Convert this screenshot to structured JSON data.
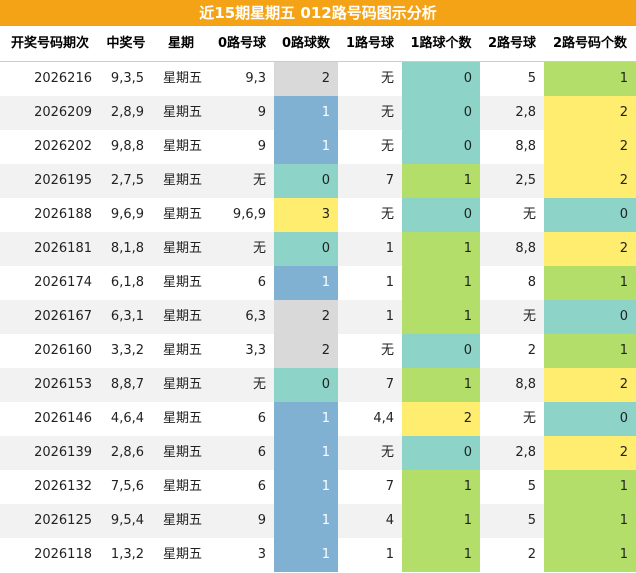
{
  "header": {
    "title": "近15期星期五 012路号码图示分析"
  },
  "table": {
    "columns": [
      "开奖号码期次",
      "中奖号",
      "星期",
      "0路号球",
      "0路球数",
      "1路号球",
      "1路球个数",
      "2路号球",
      "2路号码个数"
    ],
    "rows": [
      [
        "2026216",
        "9,3,5",
        "星期五",
        "9,3",
        2,
        "无",
        0,
        "5",
        1
      ],
      [
        "2026209",
        "2,8,9",
        "星期五",
        "9",
        1,
        "无",
        0,
        "2,8",
        2
      ],
      [
        "2026202",
        "9,8,8",
        "星期五",
        "9",
        1,
        "无",
        0,
        "8,8",
        2
      ],
      [
        "2026195",
        "2,7,5",
        "星期五",
        "无",
        0,
        "7",
        1,
        "2,5",
        2
      ],
      [
        "2026188",
        "9,6,9",
        "星期五",
        "9,6,9",
        3,
        "无",
        0,
        "无",
        0
      ],
      [
        "2026181",
        "8,1,8",
        "星期五",
        "无",
        0,
        "1",
        1,
        "8,8",
        2
      ],
      [
        "2026174",
        "6,1,8",
        "星期五",
        "6",
        1,
        "1",
        1,
        "8",
        1
      ],
      [
        "2026167",
        "6,3,1",
        "星期五",
        "6,3",
        2,
        "1",
        1,
        "无",
        0
      ],
      [
        "2026160",
        "3,3,2",
        "星期五",
        "3,3",
        2,
        "无",
        0,
        "2",
        1
      ],
      [
        "2026153",
        "8,8,7",
        "星期五",
        "无",
        0,
        "7",
        1,
        "8,8",
        2
      ],
      [
        "2026146",
        "4,6,4",
        "星期五",
        "6",
        1,
        "4,4",
        2,
        "无",
        0
      ],
      [
        "2026139",
        "2,8,6",
        "星期五",
        "6",
        1,
        "无",
        0,
        "2,8",
        2
      ],
      [
        "2026132",
        "7,5,6",
        "星期五",
        "6",
        1,
        "7",
        1,
        "5",
        1
      ],
      [
        "2026125",
        "9,5,4",
        "星期五",
        "9",
        1,
        "4",
        1,
        "5",
        1
      ],
      [
        "2026118",
        "1,3,2",
        "星期五",
        "3",
        1,
        "1",
        1,
        "2",
        1
      ]
    ]
  }
}
